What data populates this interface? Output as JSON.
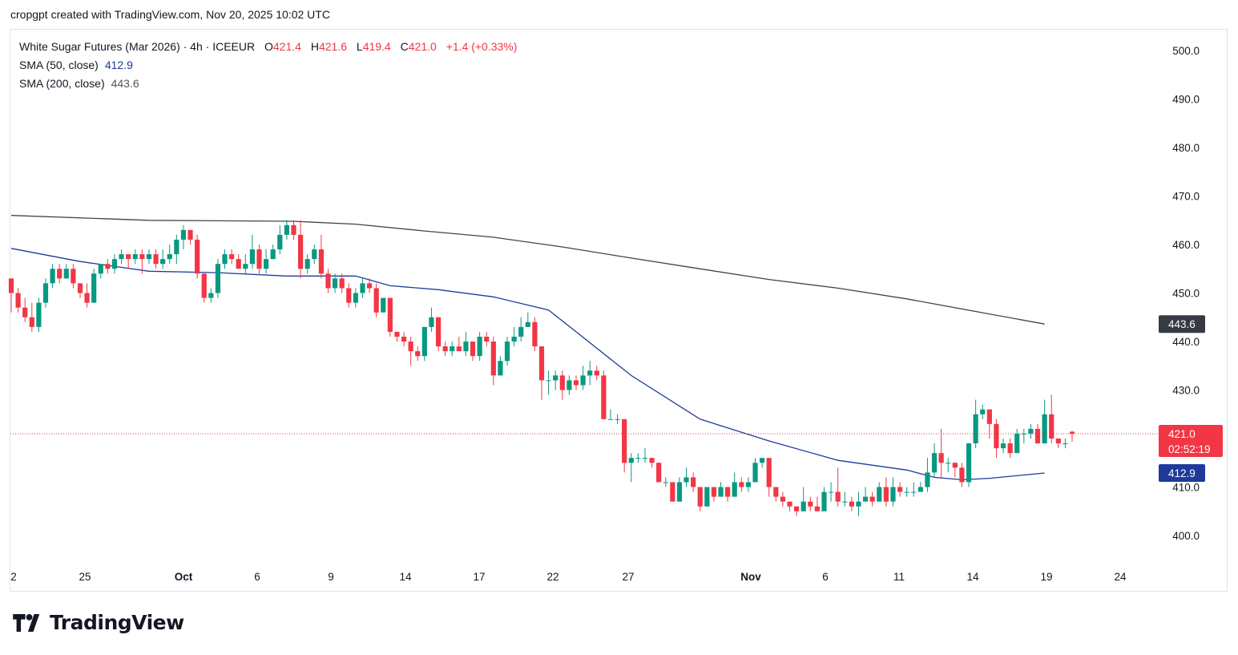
{
  "header": {
    "credit": "cropgpt created with TradingView.com, Nov 20, 2025 10:02 UTC"
  },
  "legend": {
    "symbol": "White Sugar Futures (Mar 2026) · 4h · ICEEUR",
    "open_label": "O",
    "open": "421.4",
    "high_label": "H",
    "high": "421.6",
    "low_label": "L",
    "low": "419.4",
    "close_label": "C",
    "close": "421.0",
    "change": "+1.4 (+0.33%)",
    "sma50_label": "SMA (50, close)",
    "sma50_value": "412.9",
    "sma200_label": "SMA (200, close)",
    "sma200_value": "443.6"
  },
  "price_scale": {
    "ticks": [
      "500.0",
      "490.0",
      "480.0",
      "470.0",
      "460.0",
      "450.0",
      "440.0",
      "430.0",
      "410.0",
      "400.0"
    ],
    "sma200_badge": "443.6",
    "last_price_badge": "421.0",
    "countdown": "02:52:19",
    "sma50_badge": "412.9"
  },
  "time_axis": [
    {
      "label": "2",
      "bold": false
    },
    {
      "label": "25",
      "bold": false
    },
    {
      "label": "Oct",
      "bold": true
    },
    {
      "label": "6",
      "bold": false
    },
    {
      "label": "9",
      "bold": false
    },
    {
      "label": "14",
      "bold": false
    },
    {
      "label": "17",
      "bold": false
    },
    {
      "label": "22",
      "bold": false
    },
    {
      "label": "27",
      "bold": false
    },
    {
      "label": "Nov",
      "bold": true
    },
    {
      "label": "6",
      "bold": false
    },
    {
      "label": "11",
      "bold": false
    },
    {
      "label": "14",
      "bold": false
    },
    {
      "label": "19",
      "bold": false
    },
    {
      "label": "24",
      "bold": false
    }
  ],
  "colors": {
    "up": "#089981",
    "down": "#f23645",
    "sma50": "#1e3a9a",
    "sma200": "#444444",
    "last_price": "#f23645"
  },
  "logo": {
    "text": "TradingView"
  },
  "chart_data": {
    "type": "candlestick",
    "title": "White Sugar Futures (Mar 2026) · 4h · ICEEUR",
    "ylim": [
      395,
      506
    ],
    "last_price": 421.0,
    "candles": [
      [
        453,
        450,
        453,
        446
      ],
      [
        450,
        447,
        451,
        446
      ],
      [
        447,
        445,
        449,
        444
      ],
      [
        445,
        443,
        448,
        442
      ],
      [
        443,
        448,
        449,
        442
      ],
      [
        448,
        452,
        453,
        447
      ],
      [
        452,
        455,
        456,
        451
      ],
      [
        455,
        453,
        456,
        452
      ],
      [
        453,
        455,
        456,
        453
      ],
      [
        455,
        452,
        456,
        451
      ],
      [
        452,
        450,
        452,
        449
      ],
      [
        450,
        448,
        452,
        447
      ],
      [
        448,
        454,
        455,
        448
      ],
      [
        454,
        456,
        456,
        453
      ],
      [
        456,
        455,
        457,
        454
      ],
      [
        455,
        457,
        458,
        454
      ],
      [
        457,
        458,
        459,
        456
      ],
      [
        458,
        457,
        458,
        455
      ],
      [
        457,
        458,
        459,
        456
      ],
      [
        458,
        457,
        459,
        454
      ],
      [
        457,
        458,
        459,
        456
      ],
      [
        458,
        456,
        459,
        455
      ],
      [
        456,
        457,
        459,
        455
      ],
      [
        457,
        458,
        460,
        456
      ],
      [
        458,
        461,
        462,
        456
      ],
      [
        461,
        463,
        464,
        459
      ],
      [
        463,
        461,
        463,
        460
      ],
      [
        461,
        454,
        462,
        453
      ],
      [
        454,
        449,
        454,
        448
      ],
      [
        449,
        450,
        451,
        448
      ],
      [
        450,
        456,
        457,
        449
      ],
      [
        456,
        458,
        459,
        455
      ],
      [
        458,
        457,
        459,
        456
      ],
      [
        457,
        455,
        458,
        455
      ],
      [
        455,
        456,
        458,
        454
      ],
      [
        456,
        459,
        462,
        455
      ],
      [
        459,
        455,
        460,
        454
      ],
      [
        455,
        457,
        459,
        454
      ],
      [
        457,
        459,
        460,
        457
      ],
      [
        459,
        462,
        464,
        458
      ],
      [
        462,
        464,
        465,
        461
      ],
      [
        464,
        462,
        465,
        461
      ],
      [
        462,
        455,
        465,
        453
      ],
      [
        455,
        457,
        458,
        454
      ],
      [
        457,
        459,
        460,
        456
      ],
      [
        459,
        454,
        462,
        453
      ],
      [
        454,
        451,
        455,
        450
      ],
      [
        451,
        453,
        454,
        450
      ],
      [
        453,
        451,
        454,
        450
      ],
      [
        451,
        448,
        452,
        447
      ],
      [
        448,
        450,
        451,
        447
      ],
      [
        450,
        452,
        453,
        449
      ],
      [
        452,
        451,
        453,
        450
      ],
      [
        451,
        446,
        452,
        445
      ],
      [
        446,
        449,
        449,
        446
      ],
      [
        449,
        442,
        449,
        441
      ],
      [
        442,
        441,
        442,
        440
      ],
      [
        441,
        440,
        442,
        439
      ],
      [
        440,
        438,
        441,
        435
      ],
      [
        438,
        437,
        439,
        436
      ],
      [
        437,
        443,
        443,
        436
      ],
      [
        443,
        445,
        447,
        442
      ],
      [
        445,
        439,
        445,
        438
      ],
      [
        439,
        438,
        440,
        437
      ],
      [
        438,
        439,
        440,
        437
      ],
      [
        439,
        438,
        441,
        438
      ],
      [
        438,
        440,
        442,
        437
      ],
      [
        440,
        437,
        440,
        436
      ],
      [
        437,
        441,
        442,
        436
      ],
      [
        441,
        440,
        442,
        439
      ],
      [
        440,
        433,
        441,
        431
      ],
      [
        433,
        436,
        437,
        433
      ],
      [
        436,
        440,
        441,
        435
      ],
      [
        440,
        441,
        443,
        439
      ],
      [
        441,
        443,
        445,
        440
      ],
      [
        443,
        444,
        446,
        443
      ],
      [
        444,
        439,
        445,
        438
      ],
      [
        439,
        432,
        439,
        428
      ],
      [
        432,
        432,
        434,
        429
      ],
      [
        432,
        433,
        434,
        430
      ],
      [
        433,
        430,
        434,
        428
      ],
      [
        430,
        432,
        433,
        429
      ],
      [
        432,
        431,
        433,
        430
      ],
      [
        431,
        433,
        435,
        430
      ],
      [
        433,
        434,
        436,
        431
      ],
      [
        434,
        433,
        435,
        432
      ],
      [
        433,
        424,
        434,
        424
      ],
      [
        424,
        424,
        426,
        424
      ],
      [
        424,
        424,
        425,
        423
      ],
      [
        424,
        415,
        424,
        413
      ],
      [
        415,
        416,
        417,
        411
      ],
      [
        416,
        416,
        417,
        415
      ],
      [
        416,
        416,
        418,
        415
      ],
      [
        416,
        415,
        416,
        414
      ],
      [
        415,
        411,
        415,
        411
      ],
      [
        411,
        411,
        412,
        410
      ],
      [
        411,
        407,
        411,
        407
      ],
      [
        407,
        411,
        412,
        408
      ],
      [
        411,
        412,
        414,
        410
      ],
      [
        412,
        410,
        413,
        409
      ],
      [
        410,
        406,
        410,
        405
      ],
      [
        406,
        410,
        410,
        406
      ],
      [
        410,
        408,
        410,
        407
      ],
      [
        408,
        410,
        411,
        408
      ],
      [
        410,
        408,
        410,
        407
      ],
      [
        408,
        411,
        413,
        408
      ],
      [
        411,
        410,
        412,
        409
      ],
      [
        410,
        411,
        412,
        409
      ],
      [
        411,
        415,
        416,
        411
      ],
      [
        415,
        416,
        416,
        414
      ],
      [
        416,
        410,
        416,
        408
      ],
      [
        410,
        408,
        410,
        407
      ],
      [
        408,
        407,
        409,
        406
      ],
      [
        407,
        406,
        407,
        405
      ],
      [
        406,
        405,
        406,
        404
      ],
      [
        405,
        407,
        410,
        405
      ],
      [
        407,
        406,
        408,
        405
      ],
      [
        406,
        405,
        408,
        405
      ],
      [
        405,
        409,
        410,
        406
      ],
      [
        409,
        409,
        411,
        407
      ],
      [
        409,
        407,
        414,
        406
      ],
      [
        407,
        407,
        409,
        406
      ],
      [
        407,
        406,
        408,
        405
      ],
      [
        406,
        407,
        409,
        404
      ],
      [
        407,
        408,
        410,
        407
      ],
      [
        408,
        407,
        409,
        406
      ],
      [
        407,
        410,
        411,
        407
      ],
      [
        410,
        407,
        412,
        406
      ],
      [
        407,
        410,
        412,
        406
      ],
      [
        410,
        409,
        411,
        408
      ],
      [
        409,
        409,
        410,
        408
      ],
      [
        409,
        409,
        411,
        408
      ],
      [
        409,
        410,
        411,
        409
      ],
      [
        410,
        413,
        416,
        409
      ],
      [
        413,
        417,
        419,
        412
      ],
      [
        417,
        415,
        422,
        412
      ],
      [
        415,
        415,
        416,
        413
      ],
      [
        415,
        414,
        415,
        412
      ],
      [
        414,
        411,
        415,
        410
      ],
      [
        411,
        419,
        419,
        410
      ],
      [
        419,
        425,
        428,
        418
      ],
      [
        425,
        426,
        427,
        424
      ],
      [
        426,
        423,
        426,
        420
      ],
      [
        423,
        418,
        424,
        416
      ],
      [
        418,
        419,
        420,
        417
      ],
      [
        419,
        417,
        420,
        416
      ],
      [
        417,
        421,
        422,
        417
      ],
      [
        421,
        421,
        422,
        419
      ],
      [
        421,
        422,
        423,
        420
      ],
      [
        422,
        419,
        423,
        419
      ],
      [
        419,
        425,
        428,
        419
      ],
      [
        425,
        420,
        429,
        419
      ],
      [
        420,
        419,
        420,
        418
      ],
      [
        419,
        419,
        420,
        418
      ],
      [
        421.4,
        421.0,
        421.6,
        419.4
      ]
    ],
    "sma50": [
      [
        0,
        459.2
      ],
      [
        10,
        456.5
      ],
      [
        20,
        454.5
      ],
      [
        30,
        454.2
      ],
      [
        40,
        453.5
      ],
      [
        50,
        453.5
      ],
      [
        55,
        451.5
      ],
      [
        62,
        450.7
      ],
      [
        70,
        449.2
      ],
      [
        78,
        446.5
      ],
      [
        82,
        442.0
      ],
      [
        90,
        433.0
      ],
      [
        100,
        424.0
      ],
      [
        110,
        419.5
      ],
      [
        120,
        415.5
      ],
      [
        130,
        413.5
      ],
      [
        134,
        412.0
      ],
      [
        138,
        411.5
      ],
      [
        142,
        411.8
      ],
      [
        150,
        412.9
      ]
    ],
    "sma200": [
      [
        0,
        466.0
      ],
      [
        20,
        465.0
      ],
      [
        41,
        464.8
      ],
      [
        50,
        464.2
      ],
      [
        60,
        462.8
      ],
      [
        70,
        461.5
      ],
      [
        80,
        459.5
      ],
      [
        90,
        457.2
      ],
      [
        100,
        455.0
      ],
      [
        110,
        452.8
      ],
      [
        120,
        451.0
      ],
      [
        130,
        448.8
      ],
      [
        140,
        446.2
      ],
      [
        150,
        443.6
      ]
    ]
  }
}
